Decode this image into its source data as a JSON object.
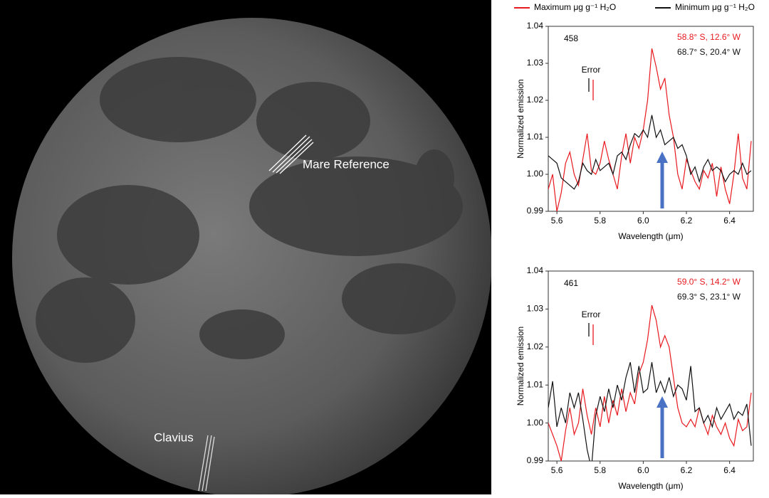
{
  "moon_labels": [
    "Mare Reference",
    "Clavius"
  ],
  "legend": [
    {
      "label": "Maximum μg g⁻¹ H₂O",
      "color": "#e8191f"
    },
    {
      "label": "Minimum μg g⁻¹ H₂O",
      "color": "#111111"
    }
  ],
  "chart_data": [
    {
      "type": "line",
      "panel": "458",
      "error_label": "Error",
      "xlabel": "Wavelength (μm)",
      "ylabel": "Normalized emission",
      "xlim": [
        5.56,
        6.51
      ],
      "ylim": [
        0.99,
        1.04
      ],
      "xticks": [
        5.6,
        5.8,
        {
          "value": 6,
          "label": "6.0"
        },
        6.2,
        6.4
      ],
      "yticks": [
        0.99,
        {
          "value": 1,
          "label": "1.00"
        },
        1.01,
        1.02,
        1.03,
        1.04
      ],
      "x": [
        5.56,
        5.58,
        5.6,
        5.62,
        5.64,
        5.66,
        5.68,
        5.7,
        5.72,
        5.74,
        5.76,
        5.78,
        5.8,
        5.82,
        5.84,
        5.86,
        5.88,
        5.9,
        5.92,
        5.94,
        5.96,
        5.98,
        6.0,
        6.02,
        6.04,
        6.06,
        6.08,
        6.1,
        6.12,
        6.14,
        6.16,
        6.18,
        6.2,
        6.22,
        6.24,
        6.26,
        6.28,
        6.3,
        6.32,
        6.34,
        6.36,
        6.38,
        6.4,
        6.42,
        6.44,
        6.46,
        6.48,
        6.5
      ],
      "series": [
        {
          "name": "58.8° S, 12.6° W",
          "color": "#e8191f",
          "values": [
            0.996,
            1.0,
            0.99,
            0.995,
            1.003,
            1.006,
            1.0,
            0.997,
            1.004,
            1.011,
            1.001,
            1.0,
            1.003,
            1.009,
            1.004,
            1.0,
            0.996,
            1.005,
            1.011,
            1.003,
            1.01,
            1.007,
            1.012,
            1.02,
            1.034,
            1.029,
            1.023,
            1.026,
            1.016,
            1.01,
            1.0,
            0.996,
            1.004,
            1.001,
            0.998,
            0.996,
            1.001,
            0.999,
            1.003,
            0.994,
            1.002,
            0.996,
            0.992,
            1.0,
            1.011,
            0.999,
            0.996,
            1.009
          ]
        },
        {
          "name": "68.7° S, 20.4° W",
          "color": "#111111",
          "values": [
            1.005,
            1.004,
            1.003,
            0.999,
            0.998,
            0.997,
            0.996,
            0.998,
            1.003,
            1.001,
            1.0,
            1.004,
            1.001,
            1.002,
            1.003,
            1.0,
            1.005,
            1.006,
            1.004,
            1.008,
            1.011,
            1.01,
            1.012,
            1.01,
            1.016,
            1.01,
            1.012,
            1.008,
            1.009,
            1.01,
            1.007,
            1.008,
            1.005,
            1.0,
            1.002,
            0.998,
            1.002,
            1.004,
            1.001,
            1.002,
            1.001,
            0.998,
            1.0,
            1.001,
            1.0,
            1.003,
            1.0,
            1.001
          ]
        }
      ]
    },
    {
      "type": "line",
      "panel": "461",
      "error_label": "Error",
      "xlabel": "Wavelength (μm)",
      "ylabel": "Normalized emission",
      "xlim": [
        5.56,
        6.51
      ],
      "ylim": [
        0.99,
        1.04
      ],
      "xticks": [
        5.6,
        5.8,
        {
          "value": 6,
          "label": "6.0"
        },
        6.2,
        6.4
      ],
      "yticks": [
        0.99,
        {
          "value": 1,
          "label": "1.00"
        },
        1.01,
        1.02,
        1.03,
        1.04
      ],
      "x": [
        5.56,
        5.58,
        5.6,
        5.62,
        5.64,
        5.66,
        5.68,
        5.7,
        5.72,
        5.74,
        5.76,
        5.78,
        5.8,
        5.82,
        5.84,
        5.86,
        5.88,
        5.9,
        5.92,
        5.94,
        5.96,
        5.98,
        6.0,
        6.02,
        6.04,
        6.06,
        6.08,
        6.1,
        6.12,
        6.14,
        6.16,
        6.18,
        6.2,
        6.22,
        6.24,
        6.26,
        6.28,
        6.3,
        6.32,
        6.34,
        6.36,
        6.38,
        6.4,
        6.42,
        6.44,
        6.46,
        6.48,
        6.5
      ],
      "series": [
        {
          "name": "59.0° S, 14.2° W",
          "color": "#e8191f",
          "values": [
            1.0,
            0.997,
            0.994,
            0.99,
            0.998,
            1.004,
            0.997,
            1.0,
            1.009,
            1.002,
            0.997,
            1.004,
            0.999,
            1.007,
            1.0,
            1.006,
            1.002,
            1.009,
            1.003,
            1.008,
            1.005,
            1.013,
            1.016,
            1.022,
            1.031,
            1.027,
            1.02,
            1.023,
            1.02,
            1.012,
            1.004,
            1.0,
            0.999,
            1.001,
            0.999,
            1.004,
            1.0,
            0.997,
            1.002,
            0.999,
            0.997,
            1.0,
            0.996,
            0.994,
            1.001,
            0.998,
            0.999,
            1.008
          ]
        },
        {
          "name": "69.3° S, 23.1° W",
          "color": "#111111",
          "values": [
            1.004,
            1.011,
            0.999,
            1.004,
            1.0,
            1.008,
            1.004,
            1.008,
            1.001,
            0.993,
            0.988,
            1.002,
            1.007,
            1.003,
            1.009,
            1.004,
            1.01,
            1.006,
            1.012,
            1.016,
            1.008,
            1.015,
            1.008,
            1.009,
            1.016,
            1.008,
            1.011,
            1.008,
            1.012,
            1.007,
            1.01,
            1.009,
            1.006,
            1.015,
            1.003,
            1.004,
            1.0,
            1.002,
            0.999,
            1.004,
            1.001,
            1.003,
            1.005,
            1.001,
            1.003,
            1.002,
            1.005,
            0.994
          ]
        }
      ]
    }
  ]
}
